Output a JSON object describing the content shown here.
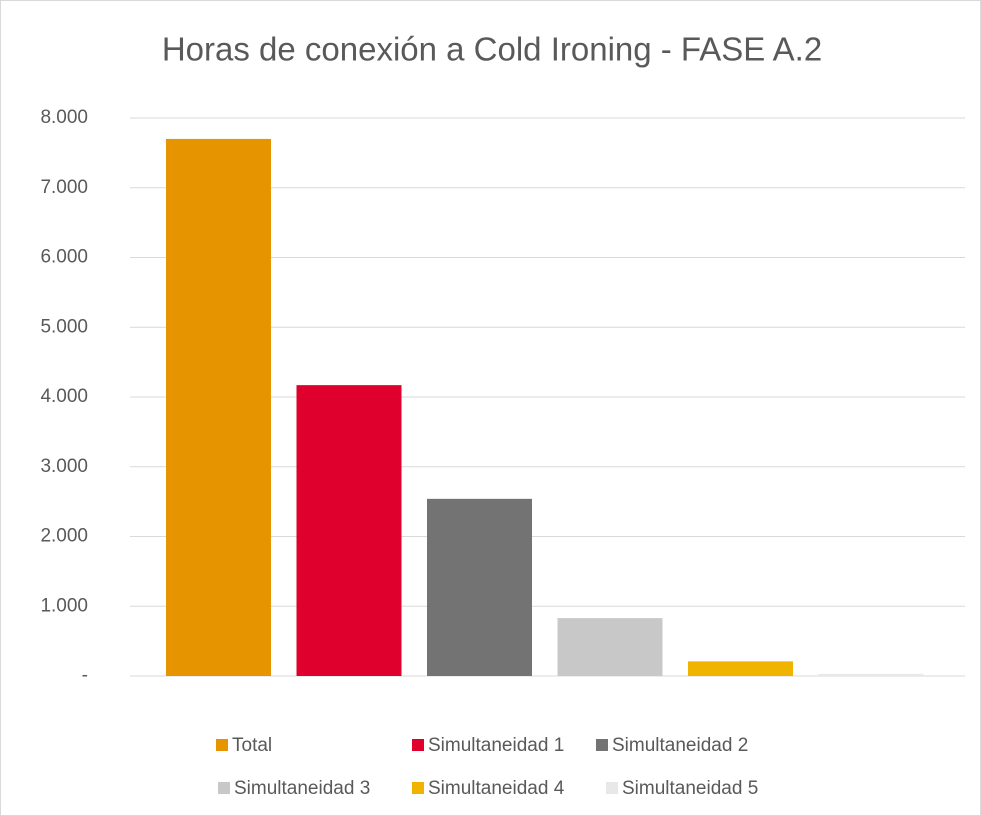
{
  "chart_data": {
    "type": "bar",
    "title": "Horas de conexión a Cold Ironing - FASE A.2",
    "categories": [
      null
    ],
    "series": [
      {
        "name": "Total",
        "color": "#e69500",
        "values": [
          7700
        ]
      },
      {
        "name": "Simultaneidad 1",
        "color": "#e0002d",
        "values": [
          4170
        ]
      },
      {
        "name": "Simultaneidad 2",
        "color": "#737373",
        "values": [
          2540
        ]
      },
      {
        "name": "Simultaneidad 3",
        "color": "#c8c8c8",
        "values": [
          830
        ]
      },
      {
        "name": "Simultaneidad 4",
        "color": "#f0b400",
        "values": [
          210
        ]
      },
      {
        "name": "Simultaneidad 5",
        "color": "#e8e8e8",
        "values": [
          30
        ]
      }
    ],
    "ylim": [
      0,
      8000
    ],
    "yticks": [
      {
        "value": 0,
        "label": "-"
      },
      {
        "value": 1000,
        "label": "1.000"
      },
      {
        "value": 2000,
        "label": "2.000"
      },
      {
        "value": 3000,
        "label": "3.000"
      },
      {
        "value": 4000,
        "label": "4.000"
      },
      {
        "value": 5000,
        "label": "5.000"
      },
      {
        "value": 6000,
        "label": "6.000"
      },
      {
        "value": 7000,
        "label": "7.000"
      },
      {
        "value": 8000,
        "label": "8.000"
      }
    ],
    "grid": true
  }
}
